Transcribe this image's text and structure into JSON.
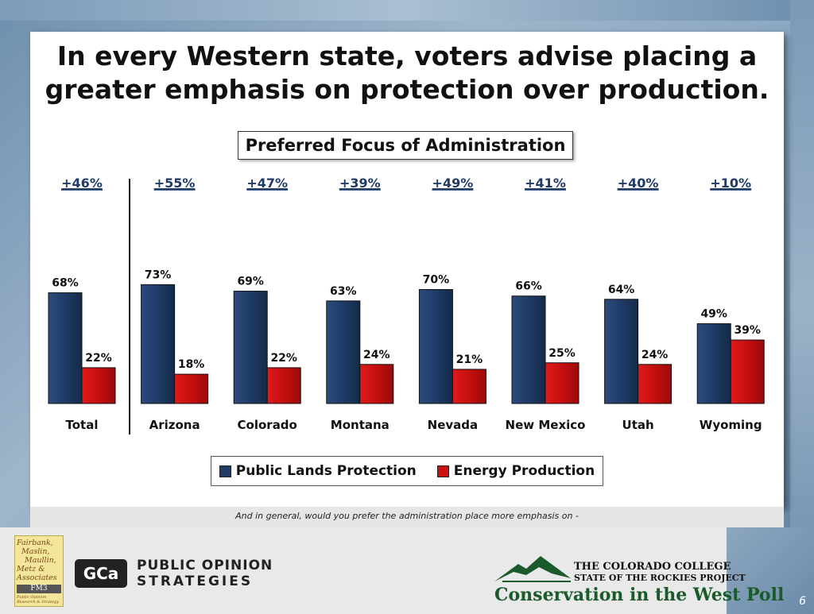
{
  "slide": {
    "title": "In every Western state, voters advise placing a greater emphasis on protection over production.",
    "footnote": "And in general, would you prefer the administration place more emphasis on -",
    "slide_number": "6"
  },
  "chart_data": {
    "type": "bar",
    "title": "Preferred Focus of Administration",
    "categories": [
      "Total",
      "Arizona",
      "Colorado",
      "Montana",
      "Nevada",
      "New Mexico",
      "Utah",
      "Wyoming"
    ],
    "series": [
      {
        "name": "Public Lands Protection",
        "values": [
          68,
          73,
          69,
          63,
          70,
          66,
          64,
          49
        ],
        "color": "#1f3b66"
      },
      {
        "name": "Energy Production",
        "values": [
          22,
          18,
          22,
          24,
          21,
          25,
          24,
          39
        ],
        "color": "#cc1010"
      }
    ],
    "value_labels": [
      [
        "68%",
        "73%",
        "69%",
        "63%",
        "70%",
        "66%",
        "64%",
        "49%"
      ],
      [
        "22%",
        "18%",
        "22%",
        "24%",
        "21%",
        "25%",
        "24%",
        "39%"
      ]
    ],
    "differences": [
      "+46%",
      "+55%",
      "+47%",
      "+39%",
      "+49%",
      "+41%",
      "+40%",
      "+10%"
    ],
    "difference_color": "#1f3b66",
    "ylim": [
      0,
      100
    ],
    "grid": false,
    "legend_position": "bottom"
  },
  "logos": {
    "fm3_lines": [
      "Fairbank,",
      "Maslin,",
      "Maullin,",
      "Metz &",
      "Associates"
    ],
    "fm3_badge": "FM3",
    "fm3_tagline": "Public Opinion Research & Strategy",
    "pos_mark": "GCa",
    "pos_line1": "PUBLIC OPINION",
    "pos_line2": "STRATEGIES",
    "cc_line1": "THE COLORADO COLLEGE",
    "cc_line2": "STATE OF THE ROCKIES PROJECT",
    "cc_line3": "Conservation in the West Poll"
  }
}
